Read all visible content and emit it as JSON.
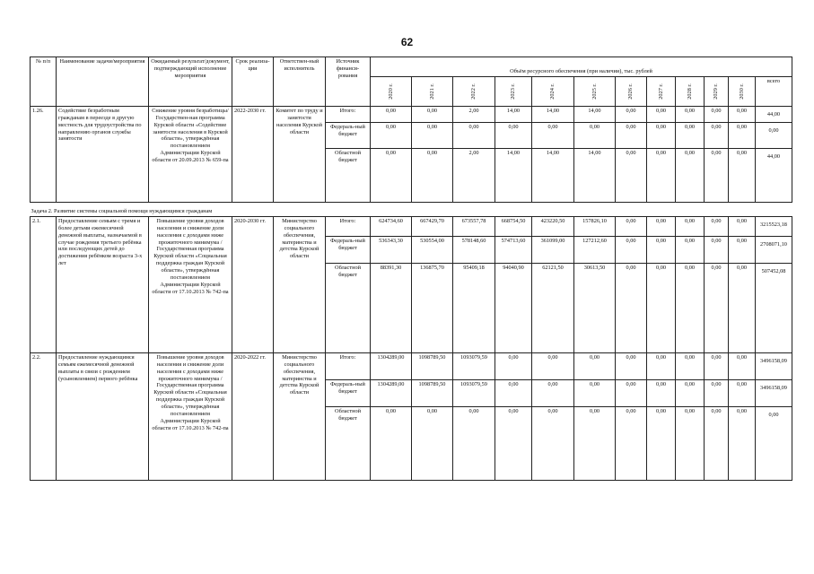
{
  "page_number": "62",
  "headers": {
    "num": "№ п/п",
    "name": "Наименование задачи/мероприятия",
    "result": "Ожидаемый результат/документ, подтверждающий исполнение мероприятия",
    "term": "Срок реализа-ции",
    "responsible": "Ответствен-ный исполнитель",
    "source": "Источник финанси-рования",
    "volume": "Объём ресурсного обеспечения (при наличии), тыс. рублей",
    "years": [
      "2020 г.",
      "2021 г.",
      "2022 г.",
      "2023 г.",
      "2024 г.",
      "2025 г.",
      "2026 г.",
      "2027 г.",
      "2028 г.",
      "2029 г.",
      "2030 г."
    ],
    "total": "всего"
  },
  "rows": [
    {
      "num": "1.26.",
      "name": "Содействие безработным гражданам в переезде в другую местность для трудоустройства по направлению органов службы занятости",
      "result": "Снижение уровня безработицы/Государствен-ная программа Курской области «Содействие занятости населения в Курской области», утверждённая постановлением Администрации Курской области от 20.09.2013 № 659-па",
      "term": "2022-2030 гг.",
      "responsible": "Комитет по труду и занятости населения Курской области",
      "funding": [
        {
          "source": "Итого:",
          "values": [
            "0,00",
            "0,00",
            "2,00",
            "14,00",
            "14,00",
            "14,00",
            "0,00",
            "0,00",
            "0,00",
            "0,00",
            "0,00"
          ],
          "total": "44,00"
        },
        {
          "source": "Федераль-ный бюджет",
          "values": [
            "0,00",
            "0,00",
            "0,00",
            "0,00",
            "0,00",
            "0,00",
            "0,00",
            "0,00",
            "0,00",
            "0,00",
            "0,00"
          ],
          "total": "0,00"
        },
        {
          "source": "Областной бюджет",
          "values": [
            "0,00",
            "0,00",
            "2,00",
            "14,00",
            "14,00",
            "14,00",
            "0,00",
            "0,00",
            "0,00",
            "0,00",
            "0,00"
          ],
          "total": "44,00"
        }
      ]
    },
    {
      "num": "2.1.",
      "name": "Предоставление семьям с тремя и более детьми ежемесячной денежной выплаты, назначаемой в случае рождения третьего ребёнка или последующих детей до достижения ребёнком возраста 3-х лет",
      "result": "Повышение уровня доходов населения и снижение доли населения с доходами ниже прожиточного минимума / Государственная программа Курской области «Социальная поддержка граждан Курской области», утверждённая постановлением Администрации Курской области от 17.10.2013 № 742-па",
      "term": "2020-2030 гг.",
      "responsible": "Министерство социального обеспечения, материнства и детства Курской области",
      "funding": [
        {
          "source": "Итого:",
          "values": [
            "624734,60",
            "667429,70",
            "673557,78",
            "668754,50",
            "423220,50",
            "157826,10",
            "0,00",
            "0,00",
            "0,00",
            "0,00",
            "0,00"
          ],
          "total": "3215523,18"
        },
        {
          "source": "Федераль-ный бюджет",
          "values": [
            "536343,30",
            "530554,00",
            "578148,60",
            "574713,60",
            "361099,00",
            "127212,60",
            "0,00",
            "0,00",
            "0,00",
            "0,00",
            "0,00"
          ],
          "total": "2708071,10"
        },
        {
          "source": "Областной бюджет",
          "values": [
            "88391,30",
            "136875,70",
            "95409,18",
            "94040,90",
            "62121,50",
            "30613,50",
            "0,00",
            "0,00",
            "0,00",
            "0,00",
            "0,00"
          ],
          "total": "507452,08"
        }
      ]
    },
    {
      "num": "2.2.",
      "name": "Предоставление нуждающимся семьям ежемесячной денежной выплаты в связи с рождением (усыновлением) первого ребёнка",
      "result": "Повышение уровня доходов населения и снижение доли населения с доходами ниже прожиточного минимума / Государственная программа Курской области «Социальная поддержка граждан Курской области», утверждённая постановлением Администрации Курской области от 17.10.2013 № 742-па",
      "term": "2020-2022 гг.",
      "responsible": "Министерство социального обеспечения, материнства и детства Курской области",
      "funding": [
        {
          "source": "Итого:",
          "values": [
            "1304289,00",
            "1098789,50",
            "1093079,59",
            "0,00",
            "0,00",
            "0,00",
            "0,00",
            "0,00",
            "0,00",
            "0,00",
            "0,00"
          ],
          "total": "3496158,09"
        },
        {
          "source": "Федераль-ный бюджет",
          "values": [
            "1304289,00",
            "1098789,50",
            "1093079,59",
            "0,00",
            "0,00",
            "0,00",
            "0,00",
            "0,00",
            "0,00",
            "0,00",
            "0,00"
          ],
          "total": "3496158,09"
        },
        {
          "source": "Областной бюджет",
          "values": [
            "0,00",
            "0,00",
            "0,00",
            "0,00",
            "0,00",
            "0,00",
            "0,00",
            "0,00",
            "0,00",
            "0,00",
            "0,00"
          ],
          "total": "0,00"
        }
      ]
    }
  ],
  "task2": "Задача 2. Развитие системы социальной помощи нуждающимся гражданам"
}
